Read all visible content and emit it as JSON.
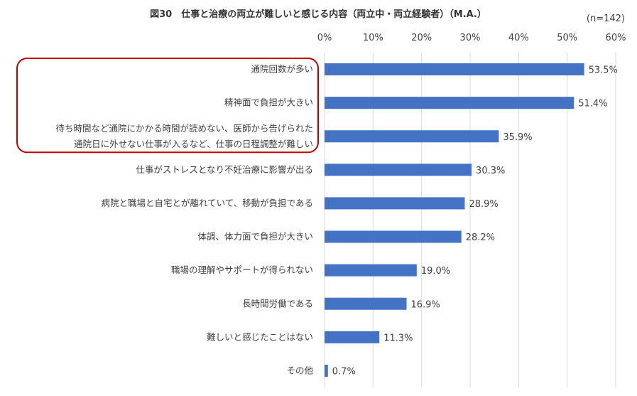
{
  "chart_data": {
    "type": "bar",
    "orientation": "horizontal",
    "title": "図30　仕事と治療の両立が難しいと感じる内容（両立中・両立経験者）（M.A.）",
    "note": "(n=142)",
    "xlim": [
      0,
      60
    ],
    "ticks": [
      0,
      10,
      20,
      30,
      40,
      50,
      60
    ],
    "tick_labels": [
      "0%",
      "10%",
      "20%",
      "30%",
      "40%",
      "50%",
      "60%"
    ],
    "grid": true,
    "bar_color": "#4472C4",
    "highlight_color": "#C00000",
    "highlight_first_n": 3,
    "categories": [
      [
        "通院回数が多い"
      ],
      [
        "精神面で負担が大きい"
      ],
      [
        "待ち時間など通院にかかる時間が読めない、医師から告げられた",
        "通院日に外せない仕事が入るなど、仕事の日程調整が難しい"
      ],
      [
        "仕事がストレスとなり不妊治療に影響が出る"
      ],
      [
        "病院と職場と自宅とが離れていて、移動が負担である"
      ],
      [
        "体調、体力面で負担が大きい"
      ],
      [
        "職場の理解やサポートが得られない"
      ],
      [
        "長時間労働である"
      ],
      [
        "難しいと感じたことはない"
      ],
      [
        "その他"
      ]
    ],
    "values": [
      53.5,
      51.4,
      35.9,
      30.3,
      28.9,
      28.2,
      19.0,
      16.9,
      11.3,
      0.7
    ],
    "value_labels": [
      "53.5%",
      "51.4%",
      "35.9%",
      "30.3%",
      "28.9%",
      "28.2%",
      "19.0%",
      "16.9%",
      "11.3%",
      "0.7%"
    ]
  }
}
